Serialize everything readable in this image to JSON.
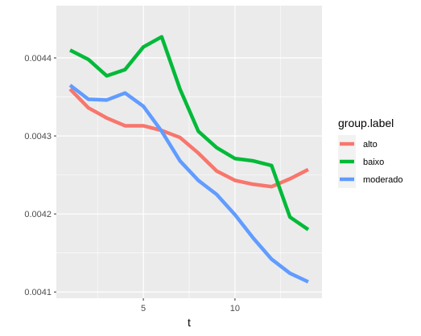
{
  "chart_data": {
    "type": "line",
    "xlabel": "t",
    "ylabel": "",
    "xlim": [
      0.25,
      14.75
    ],
    "ylim": [
      0.004092,
      0.004467
    ],
    "x_ticks": [
      5,
      10
    ],
    "x_tick_labels": [
      "5",
      "10"
    ],
    "y_ticks": [
      0.0041,
      0.0042,
      0.0043,
      0.0044
    ],
    "y_tick_labels": [
      "0.0041",
      "0.0042",
      "0.0043",
      "0.0044"
    ],
    "grid": true,
    "legend": {
      "title": "group.label",
      "position": "right"
    },
    "x": [
      1,
      2,
      3,
      4,
      5,
      6,
      7,
      8,
      9,
      10,
      11,
      12,
      13,
      14
    ],
    "series": [
      {
        "name": "alto",
        "color": "#F8766D",
        "values": [
          0.00436,
          0.004336,
          0.004323,
          0.004313,
          0.004313,
          0.004307,
          0.004298,
          0.004278,
          0.004255,
          0.004243,
          0.004238,
          0.004235,
          0.004245,
          0.004257
        ]
      },
      {
        "name": "baixo",
        "color": "#00BA38",
        "values": [
          0.00441,
          0.004398,
          0.004377,
          0.004385,
          0.004414,
          0.004427,
          0.00436,
          0.004306,
          0.004285,
          0.004271,
          0.004268,
          0.004262,
          0.004196,
          0.00418
        ]
      },
      {
        "name": "moderado",
        "color": "#619CFF",
        "values": [
          0.004365,
          0.004347,
          0.004346,
          0.004355,
          0.004338,
          0.004306,
          0.004268,
          0.004243,
          0.004225,
          0.004199,
          0.004169,
          0.004142,
          0.004124,
          0.004113
        ]
      }
    ]
  }
}
